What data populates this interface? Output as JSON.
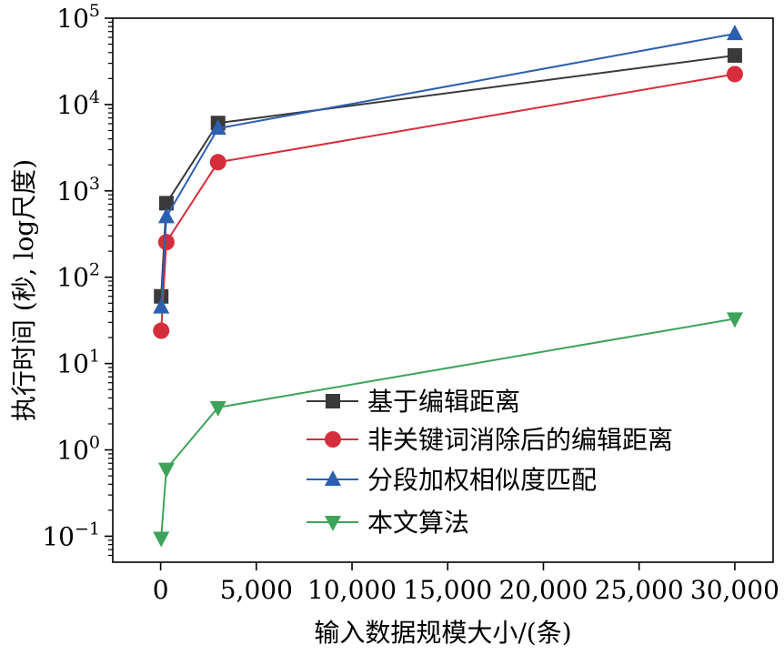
{
  "chart_data": {
    "type": "line",
    "xlabel": "输入数据规模大小/(条)",
    "ylabel": "执行时间 (秒, log尺度)",
    "xlim": [
      -2500,
      32000
    ],
    "ylim": [
      0.05,
      100000
    ],
    "yscale": "log",
    "grid": false,
    "legend_position": "lower-right-center",
    "x_ticks": [
      0,
      5000,
      10000,
      15000,
      20000,
      25000,
      30000
    ],
    "x_tick_labels": [
      "0",
      "5,000",
      "10,000",
      "15,000",
      "20,000",
      "25,000",
      "30,000"
    ],
    "y_ticks": [
      0.1,
      1,
      10,
      100,
      1000,
      10000,
      100000
    ],
    "y_tick_labels": [
      {
        "base": "10",
        "exp": "−1"
      },
      {
        "base": "10",
        "exp": "0"
      },
      {
        "base": "10",
        "exp": "1"
      },
      {
        "base": "10",
        "exp": "2"
      },
      {
        "base": "10",
        "exp": "3"
      },
      {
        "base": "10",
        "exp": "4"
      },
      {
        "base": "10",
        "exp": "5"
      }
    ],
    "series": [
      {
        "name": "基于编辑距离",
        "color": "#3a3a3a",
        "marker": "square",
        "x": [
          30,
          300,
          3000,
          30000
        ],
        "y": [
          60,
          720,
          6100,
          37000
        ]
      },
      {
        "name": "非关键词消除后的编辑距离",
        "color": "#d62d3c",
        "marker": "circle",
        "x": [
          30,
          300,
          3000,
          30000
        ],
        "y": [
          24,
          255,
          2150,
          22500
        ]
      },
      {
        "name": "分段加权相似度匹配",
        "color": "#2c5fb0",
        "marker": "triangle-up",
        "x": [
          30,
          300,
          3000,
          30000
        ],
        "y": [
          45,
          500,
          5300,
          66000
        ]
      },
      {
        "name": "本文算法",
        "color": "#3da35b",
        "marker": "triangle-down",
        "x": [
          30,
          300,
          3000,
          30000
        ],
        "y": [
          0.095,
          0.6,
          3.1,
          33
        ]
      }
    ]
  }
}
